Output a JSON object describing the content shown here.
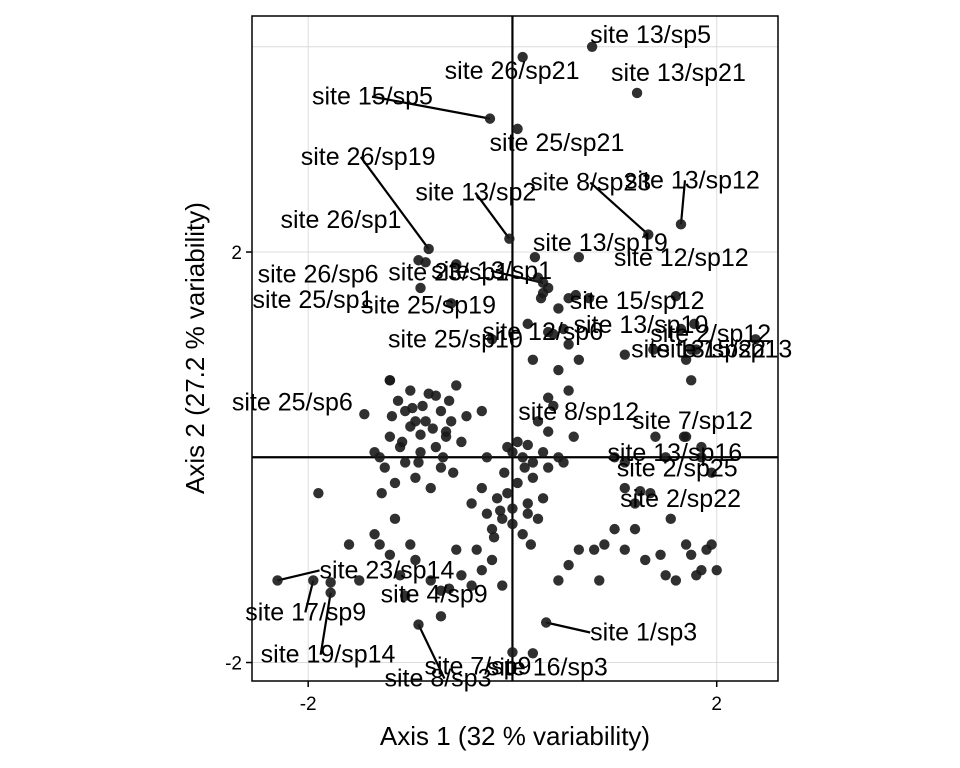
{
  "chart_data": {
    "type": "scatter",
    "xlabel": "Axis 1 (32 % variability)",
    "ylabel": "Axis 2 (27.2 % variability)",
    "xlim": [
      -2.55,
      2.6
    ],
    "ylim": [
      -2.18,
      4.3
    ],
    "x_ticks": [
      -2,
      2
    ],
    "y_ticks": [
      -2,
      2
    ],
    "x_tick_labels": [
      "-2",
      "2"
    ],
    "y_tick_labels": [
      "-2",
      "2"
    ],
    "reference_lines": {
      "x": 0,
      "y": 0
    },
    "grid": true,
    "point_color": "#1a1a1a",
    "labeled_points": [
      {
        "label": "site 13/sp5",
        "x": 0.78,
        "y": 4.0
      },
      {
        "label": "site 13/sp21",
        "x": 1.22,
        "y": 3.55
      },
      {
        "label": "site 26/sp21",
        "x": 0.1,
        "y": 3.9
      },
      {
        "label": "site 15/sp5",
        "x": -0.22,
        "y": 3.3
      },
      {
        "label": "site 25/sp21",
        "x": 0.05,
        "y": 3.2
      },
      {
        "label": "site 26/sp19",
        "x": -0.82,
        "y": 2.03
      },
      {
        "label": "site 13/sp12",
        "x": 1.65,
        "y": 2.27
      },
      {
        "label": "site 8/sp23",
        "x": 1.33,
        "y": 2.17
      },
      {
        "label": "site 13/sp2",
        "x": -0.03,
        "y": 2.13
      },
      {
        "label": "site 13/sp19",
        "x": 0.22,
        "y": 1.95
      },
      {
        "label": "site 26/sp1",
        "x": -0.92,
        "y": 1.92
      },
      {
        "label": "site 26/sp6",
        "x": -0.85,
        "y": 1.9
      },
      {
        "label": "site 23/sp1",
        "x": -0.55,
        "y": 1.88
      },
      {
        "label": "site 13/sp1",
        "x": 0.3,
        "y": 1.7
      },
      {
        "label": "site 15/sp12",
        "x": 0.62,
        "y": 1.58
      },
      {
        "label": "site 12/sp12",
        "x": 1.6,
        "y": 1.57
      },
      {
        "label": "site 25/sp1",
        "x": -0.9,
        "y": 1.65
      },
      {
        "label": "site 25/sp19",
        "x": -0.6,
        "y": 1.5
      },
      {
        "label": "site 2/sp12",
        "x": 1.78,
        "y": 1.3
      },
      {
        "label": "site 13/sp10",
        "x": 0.5,
        "y": 1.25
      },
      {
        "label": "site 12/sp6",
        "x": 0.35,
        "y": 1.22
      },
      {
        "label": "site 25/sp10",
        "x": -0.2,
        "y": 1.15
      },
      {
        "label": "site 15/sp13",
        "x": 2.38,
        "y": 1.15
      },
      {
        "label": "site 13/sp22",
        "x": 1.75,
        "y": 1.05
      },
      {
        "label": "site 25/sp6",
        "x": -1.2,
        "y": 0.75
      },
      {
        "label": "site 8/sp12",
        "x": 0.35,
        "y": 0.58
      },
      {
        "label": "site 7/sp12",
        "x": 1.68,
        "y": 0.2
      },
      {
        "label": "site 2/sp25",
        "x": 1.1,
        "y": -0.05
      },
      {
        "label": "site 13/sp16",
        "x": 1.85,
        "y": 0.1
      },
      {
        "label": "site 2/sp22",
        "x": 1.25,
        "y": -0.33
      },
      {
        "label": "site 23/sp14",
        "x": -2.3,
        "y": -1.2
      },
      {
        "label": "site 4/sp9",
        "x": -1.78,
        "y": -1.22
      },
      {
        "label": "site 17/sp9",
        "x": -1.95,
        "y": -1.2
      },
      {
        "label": "site 1/sp3",
        "x": 0.33,
        "y": -1.61
      },
      {
        "label": "site 19/sp14",
        "x": -1.78,
        "y": -1.32
      },
      {
        "label": "site 8/sp3",
        "x": -0.92,
        "y": -1.63
      },
      {
        "label": "site 7/sp9",
        "x": 0.0,
        "y": -1.9
      },
      {
        "label": "site 16/sp3",
        "x": 0.2,
        "y": -1.91
      }
    ],
    "points": [
      [
        -1.45,
        0.42
      ],
      [
        -1.2,
        0.75
      ],
      [
        -1.12,
        0.55
      ],
      [
        -1.05,
        0.45
      ],
      [
        -1.0,
        0.65
      ],
      [
        -0.95,
        0.35
      ],
      [
        -0.9,
        0.22
      ],
      [
        -0.88,
        0.5
      ],
      [
        -0.82,
        0.62
      ],
      [
        -0.78,
        0.28
      ],
      [
        -0.75,
        0.1
      ],
      [
        -0.7,
        0.45
      ],
      [
        -0.68,
        0.0
      ],
      [
        -0.65,
        0.2
      ],
      [
        -0.62,
        0.55
      ],
      [
        -0.6,
        0.35
      ],
      [
        -0.58,
        -0.15
      ],
      [
        -0.55,
        0.7
      ],
      [
        -0.5,
        0.15
      ],
      [
        -0.45,
        0.4
      ],
      [
        -1.3,
        0.0
      ],
      [
        -1.25,
        -0.1
      ],
      [
        -1.2,
        0.2
      ],
      [
        -1.15,
        -0.25
      ],
      [
        -1.1,
        0.1
      ],
      [
        -1.05,
        -0.05
      ],
      [
        -1.0,
        0.3
      ],
      [
        -0.95,
        -0.2
      ],
      [
        -0.9,
        0.05
      ],
      [
        -0.85,
        0.35
      ],
      [
        -0.8,
        -0.3
      ],
      [
        -0.75,
        0.6
      ],
      [
        -0.7,
        -0.1
      ],
      [
        -0.65,
        0.25
      ],
      [
        -1.35,
        0.05
      ],
      [
        -1.28,
        -0.35
      ],
      [
        -1.18,
        0.4
      ],
      [
        -1.08,
        0.15
      ],
      [
        -0.98,
        0.48
      ],
      [
        -0.92,
        -0.05
      ],
      [
        -0.4,
        -0.45
      ],
      [
        -0.3,
        -0.3
      ],
      [
        -0.25,
        -0.55
      ],
      [
        -0.2,
        -0.7
      ],
      [
        -0.15,
        -0.4
      ],
      [
        -0.1,
        -0.6
      ],
      [
        -0.05,
        -0.35
      ],
      [
        0.0,
        -0.5
      ],
      [
        0.05,
        -0.25
      ],
      [
        0.1,
        -0.75
      ],
      [
        0.15,
        -0.45
      ],
      [
        0.2,
        -0.2
      ],
      [
        0.25,
        -0.6
      ],
      [
        0.3,
        -0.4
      ],
      [
        -0.12,
        -0.52
      ],
      [
        -0.08,
        -0.15
      ],
      [
        0.12,
        -0.1
      ],
      [
        0.18,
        -0.85
      ],
      [
        -0.18,
        -0.78
      ],
      [
        -0.35,
        -0.9
      ],
      [
        0.4,
        0.5
      ],
      [
        0.35,
        0.25
      ],
      [
        0.3,
        0.05
      ],
      [
        0.25,
        0.35
      ],
      [
        0.2,
        -0.05
      ],
      [
        0.0,
        0.05
      ],
      [
        0.05,
        0.15
      ],
      [
        -0.05,
        0.1
      ],
      [
        0.1,
        0.0
      ],
      [
        0.15,
        0.12
      ],
      [
        0.6,
        0.2
      ],
      [
        0.5,
        -0.05
      ],
      [
        0.45,
        0.0
      ],
      [
        0.35,
        -0.1
      ],
      [
        0.55,
        0.65
      ],
      [
        0.65,
        0.95
      ],
      [
        0.55,
        1.1
      ],
      [
        0.45,
        1.45
      ],
      [
        0.35,
        1.65
      ],
      [
        0.28,
        1.55
      ],
      [
        0.15,
        1.3
      ],
      [
        0.2,
        0.95
      ],
      [
        0.25,
        1.75
      ],
      [
        0.4,
        1.2
      ],
      [
        0.75,
        1.55
      ],
      [
        1.0,
        0.0
      ],
      [
        1.1,
        -0.3
      ],
      [
        1.2,
        -0.45
      ],
      [
        1.35,
        -0.35
      ],
      [
        1.5,
        0.0
      ],
      [
        1.4,
        0.2
      ],
      [
        1.7,
        0.2
      ],
      [
        1.85,
        0.0
      ],
      [
        1.95,
        -0.15
      ],
      [
        1.55,
        -0.6
      ],
      [
        1.7,
        -0.85
      ],
      [
        1.9,
        -0.9
      ],
      [
        2.0,
        -1.1
      ],
      [
        1.85,
        -1.1
      ],
      [
        1.75,
        -0.95
      ],
      [
        1.45,
        -0.95
      ],
      [
        1.3,
        -1.0
      ],
      [
        1.1,
        -0.9
      ],
      [
        1.0,
        -0.7
      ],
      [
        0.9,
        -0.85
      ],
      [
        0.8,
        -0.9
      ],
      [
        0.65,
        -0.9
      ],
      [
        0.55,
        -1.05
      ],
      [
        0.45,
        -1.2
      ],
      [
        0.85,
        -1.2
      ],
      [
        1.5,
        -1.15
      ],
      [
        1.6,
        -1.2
      ],
      [
        1.8,
        -1.15
      ],
      [
        1.95,
        -0.85
      ],
      [
        1.2,
        -0.7
      ],
      [
        -1.5,
        -1.2
      ],
      [
        -1.6,
        -0.85
      ],
      [
        -1.35,
        -0.75
      ],
      [
        -1.2,
        -0.95
      ],
      [
        -1.1,
        -1.15
      ],
      [
        -1.05,
        -1.35
      ],
      [
        -0.95,
        -1.0
      ],
      [
        -0.8,
        -1.2
      ],
      [
        -0.7,
        -1.3
      ],
      [
        -0.55,
        -0.9
      ],
      [
        -0.5,
        -1.15
      ],
      [
        -0.4,
        -1.25
      ],
      [
        -0.3,
        -1.1
      ],
      [
        -0.2,
        -1.0
      ],
      [
        -0.1,
        -1.25
      ],
      [
        -0.7,
        -1.55
      ],
      [
        -1.3,
        -0.85
      ],
      [
        -1.15,
        -0.6
      ],
      [
        -1.9,
        -0.35
      ],
      [
        -0.62,
        -1.28
      ],
      [
        0.3,
        1.6
      ],
      [
        0.45,
        0.85
      ],
      [
        -0.3,
        0.45
      ],
      [
        0.0,
        -0.65
      ],
      [
        -1.0,
        -0.85
      ],
      [
        -0.25,
        0.0
      ],
      [
        0.15,
        -0.55
      ],
      [
        1.65,
        1.25
      ],
      [
        1.75,
        0.75
      ],
      [
        1.7,
        0.95
      ],
      [
        0.65,
        1.95
      ],
      [
        0.55,
        1.55
      ],
      [
        1.8,
        1.05
      ],
      [
        1.38,
        1.05
      ],
      [
        1.1,
        1.0
      ]
    ]
  }
}
